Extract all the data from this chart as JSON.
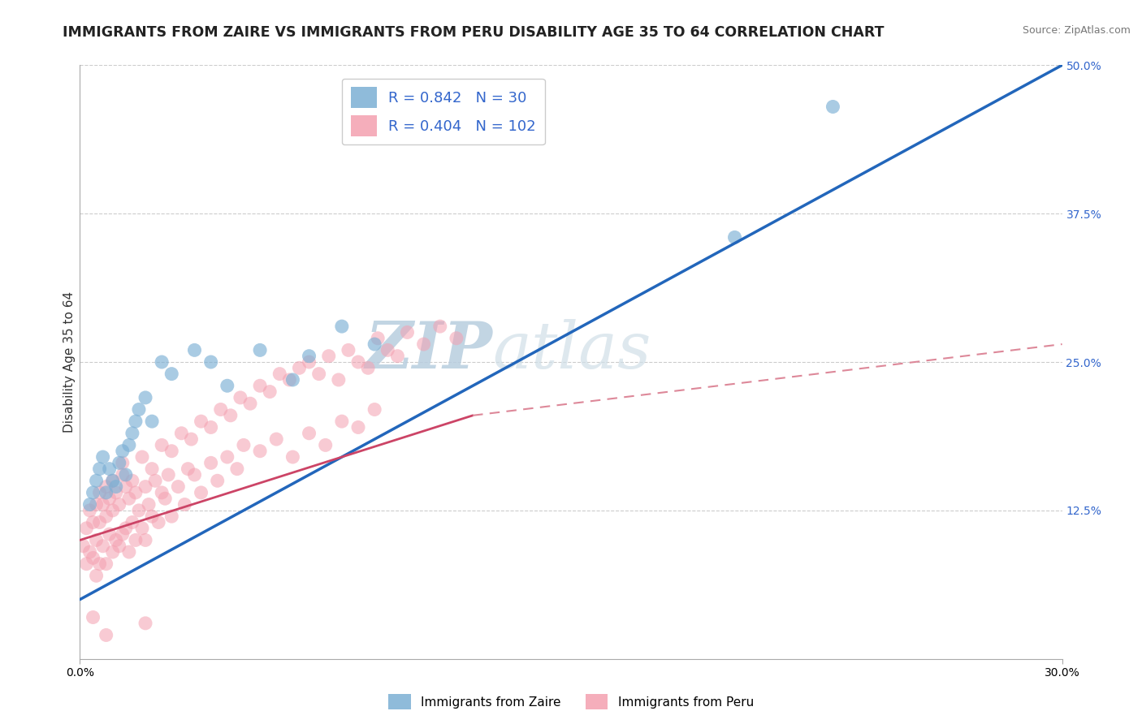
{
  "title": "IMMIGRANTS FROM ZAIRE VS IMMIGRANTS FROM PERU DISABILITY AGE 35 TO 64 CORRELATION CHART",
  "source": "Source: ZipAtlas.com",
  "xlabel": "",
  "ylabel": "Disability Age 35 to 64",
  "xlim": [
    0.0,
    30.0
  ],
  "ylim": [
    0.0,
    50.0
  ],
  "xtick_labels": [
    "0.0%",
    "30.0%"
  ],
  "yticks_right": [
    12.5,
    25.0,
    37.5,
    50.0
  ],
  "zaire_color": "#7BAFD4",
  "peru_color": "#F4A0B0",
  "zaire_line_color": "#2266BB",
  "peru_line_solid_color": "#CC4466",
  "peru_line_dash_color": "#DD8899",
  "zaire_R": 0.842,
  "zaire_N": 30,
  "peru_R": 0.404,
  "peru_N": 102,
  "legend_label_zaire": "Immigrants from Zaire",
  "legend_label_peru": "Immigrants from Peru",
  "watermark_zip": "ZIP",
  "watermark_atlas": "atlas",
  "background_color": "#FFFFFF",
  "title_fontsize": 12.5,
  "axis_label_fontsize": 11,
  "tick_fontsize": 10,
  "zaire_scatter_x": [
    0.3,
    0.4,
    0.5,
    0.6,
    0.7,
    0.8,
    0.9,
    1.0,
    1.1,
    1.2,
    1.3,
    1.4,
    1.5,
    1.6,
    1.7,
    1.8,
    2.0,
    2.2,
    2.5,
    2.8,
    3.5,
    4.0,
    4.5,
    5.5,
    6.5,
    7.0,
    8.0,
    9.0,
    20.0,
    23.0
  ],
  "zaire_scatter_y": [
    13.0,
    14.0,
    15.0,
    16.0,
    17.0,
    14.0,
    16.0,
    15.0,
    14.5,
    16.5,
    17.5,
    15.5,
    18.0,
    19.0,
    20.0,
    21.0,
    22.0,
    20.0,
    25.0,
    24.0,
    26.0,
    25.0,
    23.0,
    26.0,
    23.5,
    25.5,
    28.0,
    26.5,
    35.5,
    46.5
  ],
  "peru_scatter_x": [
    0.1,
    0.2,
    0.2,
    0.3,
    0.3,
    0.4,
    0.4,
    0.5,
    0.5,
    0.5,
    0.6,
    0.6,
    0.6,
    0.7,
    0.7,
    0.8,
    0.8,
    0.8,
    0.9,
    0.9,
    1.0,
    1.0,
    1.0,
    1.1,
    1.1,
    1.2,
    1.2,
    1.3,
    1.3,
    1.4,
    1.4,
    1.5,
    1.5,
    1.6,
    1.7,
    1.7,
    1.8,
    1.9,
    2.0,
    2.0,
    2.1,
    2.2,
    2.3,
    2.4,
    2.5,
    2.6,
    2.7,
    2.8,
    3.0,
    3.2,
    3.3,
    3.5,
    3.7,
    4.0,
    4.2,
    4.5,
    4.8,
    5.0,
    5.5,
    6.0,
    6.5,
    7.0,
    7.5,
    8.0,
    8.5,
    9.0,
    1.3,
    1.6,
    1.9,
    2.2,
    2.5,
    2.8,
    3.1,
    3.4,
    3.7,
    4.0,
    4.3,
    4.6,
    4.9,
    5.2,
    5.5,
    5.8,
    6.1,
    6.4,
    6.7,
    7.0,
    7.3,
    7.6,
    7.9,
    8.2,
    8.5,
    8.8,
    9.1,
    9.4,
    9.7,
    10.0,
    10.5,
    11.0,
    11.5,
    0.4,
    0.8,
    2.0
  ],
  "peru_scatter_y": [
    9.5,
    8.0,
    11.0,
    9.0,
    12.5,
    8.5,
    11.5,
    7.0,
    10.0,
    13.0,
    8.0,
    11.5,
    14.0,
    9.5,
    13.0,
    8.0,
    12.0,
    14.5,
    10.5,
    13.5,
    9.0,
    12.5,
    15.0,
    10.0,
    14.0,
    9.5,
    13.0,
    10.5,
    15.5,
    11.0,
    14.5,
    9.0,
    13.5,
    11.5,
    10.0,
    14.0,
    12.5,
    11.0,
    10.0,
    14.5,
    13.0,
    12.0,
    15.0,
    11.5,
    14.0,
    13.5,
    15.5,
    12.0,
    14.5,
    13.0,
    16.0,
    15.5,
    14.0,
    16.5,
    15.0,
    17.0,
    16.0,
    18.0,
    17.5,
    18.5,
    17.0,
    19.0,
    18.0,
    20.0,
    19.5,
    21.0,
    16.5,
    15.0,
    17.0,
    16.0,
    18.0,
    17.5,
    19.0,
    18.5,
    20.0,
    19.5,
    21.0,
    20.5,
    22.0,
    21.5,
    23.0,
    22.5,
    24.0,
    23.5,
    24.5,
    25.0,
    24.0,
    25.5,
    23.5,
    26.0,
    25.0,
    24.5,
    27.0,
    26.0,
    25.5,
    27.5,
    26.5,
    28.0,
    27.0,
    3.5,
    2.0,
    3.0
  ],
  "zaire_trend_x0": 0.0,
  "zaire_trend_y0": 5.0,
  "zaire_trend_x1": 30.0,
  "zaire_trend_y1": 50.0,
  "peru_solid_x0": 0.0,
  "peru_solid_y0": 10.0,
  "peru_solid_x1": 12.0,
  "peru_solid_y1": 20.5,
  "peru_dash_x0": 12.0,
  "peru_dash_y0": 20.5,
  "peru_dash_x1": 30.0,
  "peru_dash_y1": 26.5
}
